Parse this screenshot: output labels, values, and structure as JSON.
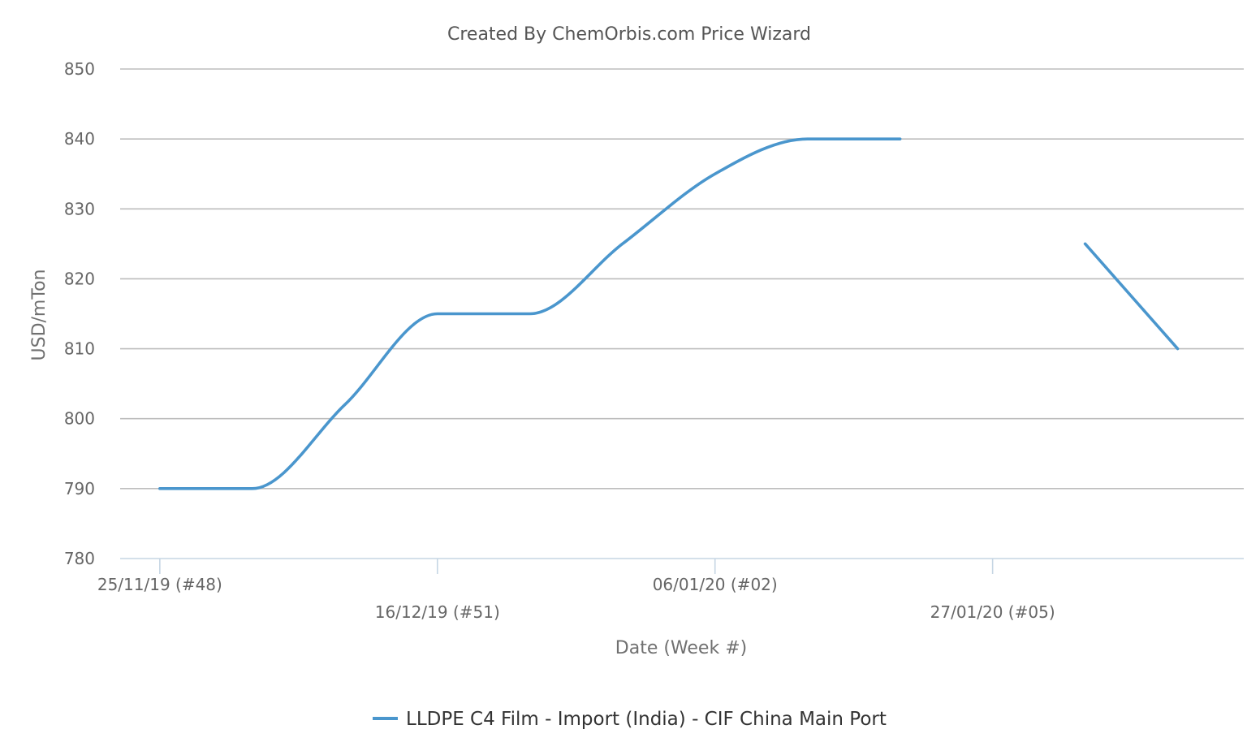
{
  "chart_data": {
    "type": "line",
    "title": "Created By ChemOrbis.com Price Wizard",
    "xlabel": "Date (Week #)",
    "ylabel": "USD/mTon",
    "ylim": [
      780,
      850
    ],
    "yticks": [
      780,
      790,
      800,
      810,
      820,
      830,
      840,
      850
    ],
    "grid": true,
    "legend_position": "bottom",
    "x_tick_labels": [
      {
        "date": "2019-11-25",
        "label": "25/11/19 (#48)"
      },
      {
        "date": "2019-12-16",
        "label": "16/12/19 (#51)"
      },
      {
        "date": "2020-01-06",
        "label": "06/01/20 (#02)"
      },
      {
        "date": "2020-01-27",
        "label": "27/01/20 (#05)"
      }
    ],
    "x_range": [
      "2019-11-22",
      "2020-02-15"
    ],
    "series": [
      {
        "name": "LLDPE C4 Film - Import (India) - CIF China Main Port",
        "color": "#4a96cd",
        "points": [
          {
            "x": "2019-11-25",
            "y": 790
          },
          {
            "x": "2019-12-02",
            "y": 790
          },
          {
            "x": "2019-12-09",
            "y": 802
          },
          {
            "x": "2019-12-16",
            "y": 815
          },
          {
            "x": "2019-12-23",
            "y": 815
          },
          {
            "x": "2019-12-30",
            "y": 825
          },
          {
            "x": "2020-01-06",
            "y": 835
          },
          {
            "x": "2020-01-13",
            "y": 840
          },
          {
            "x": "2020-01-20",
            "y": 840
          },
          {
            "x": "2020-01-27",
            "y": null
          },
          {
            "x": "2020-02-03",
            "y": 825
          },
          {
            "x": "2020-02-10",
            "y": 810
          }
        ]
      }
    ]
  }
}
